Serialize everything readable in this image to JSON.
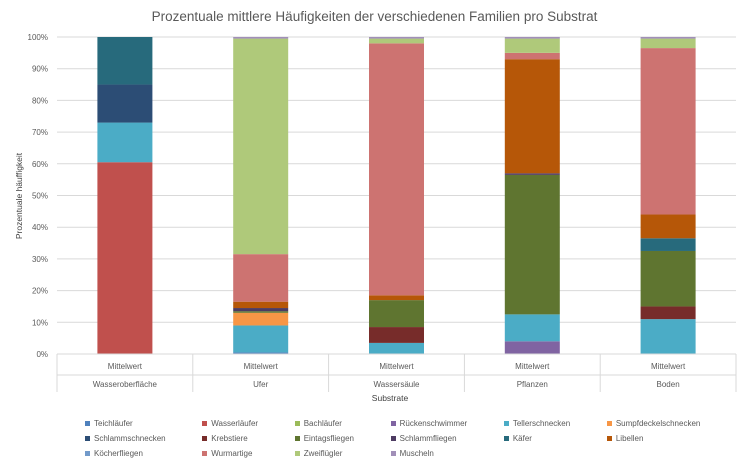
{
  "chart_data": {
    "type": "bar",
    "stacked": "percent",
    "title": "Prozentuale mittlere Häufigkeiten der verschiedenen Familien pro Substrat",
    "xlabel": "Substrate",
    "ylabel": "Prozentuale häuffigkeit",
    "ylim": [
      0,
      100
    ],
    "y_ticks": [
      "0%",
      "10%",
      "20%",
      "30%",
      "40%",
      "50%",
      "60%",
      "70%",
      "80%",
      "90%",
      "100%"
    ],
    "grid": true,
    "legend_position": "bottom",
    "categories": [
      "Wasseroberfläche",
      "Ufer",
      "Wassersäule",
      "Pflanzen",
      "Boden"
    ],
    "subcategories": [
      "Mittelwert",
      "Mittelwert",
      "Mittelwert",
      "Mittelwert",
      "Mittelwert"
    ],
    "series": [
      {
        "name": "Teichläufer",
        "color": "#4f81bd",
        "values": [
          0,
          0.5,
          0,
          0,
          0
        ]
      },
      {
        "name": "Wasserläufer",
        "color": "#c0504d",
        "values": [
          60.5,
          0,
          0,
          0,
          0
        ]
      },
      {
        "name": "Bachläufer",
        "color": "#9bbb59",
        "values": [
          0,
          0,
          0,
          0,
          0
        ]
      },
      {
        "name": "Rückenschwimmer",
        "color": "#8064a2",
        "values": [
          0,
          0,
          0,
          4,
          0
        ]
      },
      {
        "name": "Tellerschnecken",
        "color": "#4bacc6",
        "values": [
          12.5,
          8.5,
          3.5,
          8.5,
          11
        ]
      },
      {
        "name": "Sumpfdeckelschnecken",
        "color": "#f79646",
        "values": [
          0,
          4,
          0,
          0,
          0
        ]
      },
      {
        "name": "Schlammschnecken",
        "color": "#2c4d75",
        "values": [
          12,
          0,
          0,
          0,
          0
        ]
      },
      {
        "name": "Krebstiere",
        "color": "#772c2a",
        "values": [
          0,
          0,
          5,
          0,
          4
        ]
      },
      {
        "name": "Eintagsfliegen",
        "color": "#5f7530",
        "values": [
          0,
          0.5,
          8.5,
          44,
          17.5
        ]
      },
      {
        "name": "Schlammfliegen",
        "color": "#4d3b62",
        "values": [
          0,
          1,
          0,
          0.5,
          0
        ]
      },
      {
        "name": "Käfer",
        "color": "#276a7c",
        "values": [
          15,
          0,
          0,
          0,
          4
        ]
      },
      {
        "name": "Libellen",
        "color": "#b65708",
        "values": [
          0,
          2,
          1.5,
          36,
          7.5
        ]
      },
      {
        "name": "Köcherfliegen",
        "color": "#729aca",
        "values": [
          0,
          0,
          0,
          0,
          0
        ]
      },
      {
        "name": "Wurmartige",
        "color": "#cd7371",
        "values": [
          0,
          15,
          79.5,
          2,
          52.5
        ]
      },
      {
        "name": "Zweiflügler",
        "color": "#afc97a",
        "values": [
          0,
          68,
          1.5,
          4.5,
          3
        ]
      },
      {
        "name": "Muscheln",
        "color": "#a18fb8",
        "values": [
          0,
          0.5,
          0.5,
          0.5,
          0.5
        ]
      }
    ]
  }
}
